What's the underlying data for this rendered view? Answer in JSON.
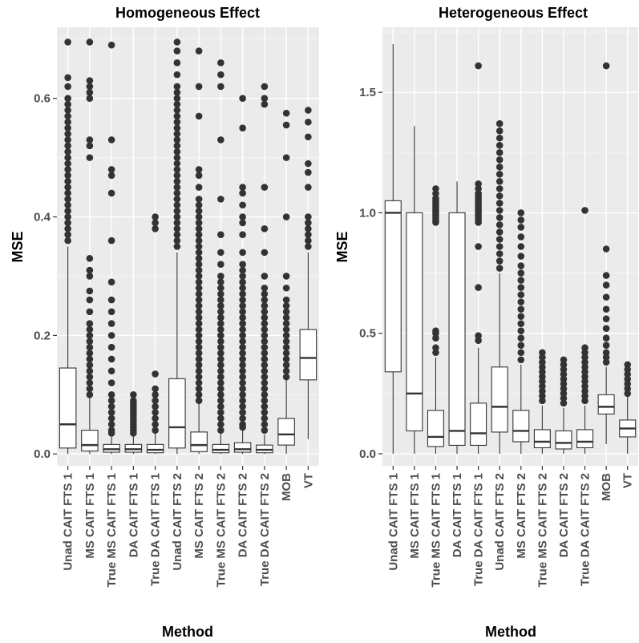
{
  "chart_data": [
    {
      "type": "box",
      "title": "Homogeneous Effect",
      "xlabel": "Method",
      "ylabel": "MSE",
      "ylim": [
        -0.02,
        0.72
      ],
      "yticks": [
        0.0,
        0.2,
        0.4,
        0.6
      ],
      "yticklabels": [
        "0.0",
        "0.2",
        "0.4",
        "0.6"
      ],
      "categories": [
        "Unad CAIT FTS 1",
        "MS CAIT FTS 1",
        "True MS CAIT FTS 1",
        "DA CAIT FTS 1",
        "True DA CAIT FTS 1",
        "Unad CAIT FTS 2",
        "MS CAIT FTS 2",
        "True MS CAIT FTS 2",
        "DA CAIT FTS 2",
        "True DA CAIT FTS 2",
        "MOB",
        "VT"
      ],
      "grid": true,
      "boxes": [
        {
          "min": 0.0,
          "q1": 0.01,
          "median": 0.05,
          "q3": 0.145,
          "max": 0.35,
          "outliers": [
            0.36,
            0.37,
            0.38,
            0.39,
            0.4,
            0.41,
            0.42,
            0.43,
            0.44,
            0.45,
            0.46,
            0.47,
            0.48,
            0.49,
            0.5,
            0.51,
            0.52,
            0.53,
            0.54,
            0.55,
            0.56,
            0.57,
            0.58,
            0.59,
            0.6,
            0.62,
            0.635,
            0.695
          ]
        },
        {
          "min": 0.0,
          "q1": 0.005,
          "median": 0.015,
          "q3": 0.04,
          "max": 0.095,
          "outliers": [
            0.1,
            0.11,
            0.12,
            0.13,
            0.14,
            0.15,
            0.16,
            0.17,
            0.18,
            0.19,
            0.2,
            0.21,
            0.22,
            0.24,
            0.26,
            0.275,
            0.3,
            0.31,
            0.33,
            0.5,
            0.52,
            0.53,
            0.6,
            0.61,
            0.62,
            0.63,
            0.695
          ]
        },
        {
          "min": 0.0,
          "q1": 0.003,
          "median": 0.008,
          "q3": 0.016,
          "max": 0.032,
          "outliers": [
            0.035,
            0.04,
            0.05,
            0.06,
            0.07,
            0.08,
            0.09,
            0.1,
            0.12,
            0.14,
            0.16,
            0.18,
            0.2,
            0.22,
            0.24,
            0.26,
            0.29,
            0.36,
            0.44,
            0.47,
            0.48,
            0.53,
            0.69
          ]
        },
        {
          "min": 0.0,
          "q1": 0.003,
          "median": 0.008,
          "q3": 0.016,
          "max": 0.032,
          "outliers": [
            0.035,
            0.04,
            0.045,
            0.05,
            0.055,
            0.06,
            0.065,
            0.07,
            0.075,
            0.08,
            0.085,
            0.09,
            0.1
          ]
        },
        {
          "min": 0.0,
          "q1": 0.002,
          "median": 0.007,
          "q3": 0.016,
          "max": 0.035,
          "outliers": [
            0.04,
            0.05,
            0.06,
            0.07,
            0.08,
            0.09,
            0.1,
            0.11,
            0.135,
            0.38,
            0.39,
            0.4
          ]
        },
        {
          "min": 0.0,
          "q1": 0.01,
          "median": 0.045,
          "q3": 0.127,
          "max": 0.34,
          "outliers": [
            0.35,
            0.36,
            0.37,
            0.38,
            0.39,
            0.4,
            0.41,
            0.42,
            0.43,
            0.44,
            0.45,
            0.46,
            0.47,
            0.48,
            0.49,
            0.5,
            0.51,
            0.52,
            0.53,
            0.54,
            0.55,
            0.56,
            0.57,
            0.58,
            0.59,
            0.6,
            0.61,
            0.62,
            0.64,
            0.66,
            0.68,
            0.695
          ]
        },
        {
          "min": 0.0,
          "q1": 0.004,
          "median": 0.015,
          "q3": 0.037,
          "max": 0.085,
          "outliers": [
            0.09,
            0.1,
            0.11,
            0.12,
            0.13,
            0.14,
            0.15,
            0.16,
            0.17,
            0.18,
            0.19,
            0.2,
            0.21,
            0.22,
            0.23,
            0.24,
            0.25,
            0.26,
            0.27,
            0.28,
            0.29,
            0.3,
            0.31,
            0.32,
            0.33,
            0.34,
            0.35,
            0.36,
            0.37,
            0.38,
            0.39,
            0.4,
            0.41,
            0.42,
            0.43,
            0.45,
            0.47,
            0.48,
            0.57,
            0.62,
            0.68
          ]
        },
        {
          "min": 0.0,
          "q1": 0.002,
          "median": 0.007,
          "q3": 0.016,
          "max": 0.035,
          "outliers": [
            0.04,
            0.05,
            0.06,
            0.07,
            0.08,
            0.09,
            0.1,
            0.11,
            0.12,
            0.13,
            0.14,
            0.15,
            0.16,
            0.17,
            0.18,
            0.19,
            0.2,
            0.21,
            0.22,
            0.23,
            0.24,
            0.25,
            0.26,
            0.27,
            0.28,
            0.29,
            0.3,
            0.32,
            0.34,
            0.37,
            0.43,
            0.53,
            0.62,
            0.64,
            0.66
          ]
        },
        {
          "min": 0.0,
          "q1": 0.003,
          "median": 0.008,
          "q3": 0.019,
          "max": 0.04,
          "outliers": [
            0.045,
            0.05,
            0.06,
            0.07,
            0.08,
            0.09,
            0.1,
            0.11,
            0.12,
            0.13,
            0.14,
            0.15,
            0.16,
            0.17,
            0.18,
            0.19,
            0.2,
            0.21,
            0.22,
            0.23,
            0.24,
            0.25,
            0.26,
            0.27,
            0.28,
            0.29,
            0.3,
            0.31,
            0.32,
            0.34,
            0.37,
            0.39,
            0.4,
            0.42,
            0.44,
            0.45,
            0.55,
            0.6
          ]
        },
        {
          "min": 0.0,
          "q1": 0.002,
          "median": 0.007,
          "q3": 0.015,
          "max": 0.033,
          "outliers": [
            0.04,
            0.05,
            0.06,
            0.07,
            0.08,
            0.09,
            0.1,
            0.11,
            0.12,
            0.13,
            0.14,
            0.15,
            0.16,
            0.17,
            0.18,
            0.19,
            0.2,
            0.21,
            0.22,
            0.23,
            0.24,
            0.25,
            0.26,
            0.27,
            0.28,
            0.3,
            0.34,
            0.38,
            0.45,
            0.59,
            0.6,
            0.62
          ]
        },
        {
          "min": 0.0,
          "q1": 0.015,
          "median": 0.033,
          "q3": 0.06,
          "max": 0.125,
          "outliers": [
            0.13,
            0.14,
            0.15,
            0.16,
            0.17,
            0.18,
            0.19,
            0.2,
            0.21,
            0.22,
            0.23,
            0.24,
            0.25,
            0.26,
            0.28,
            0.3,
            0.4,
            0.5,
            0.555,
            0.575
          ]
        },
        {
          "min": 0.025,
          "q1": 0.125,
          "median": 0.162,
          "q3": 0.21,
          "max": 0.34,
          "outliers": [
            0.35,
            0.36,
            0.37,
            0.38,
            0.39,
            0.4,
            0.45,
            0.475,
            0.49,
            0.535,
            0.56,
            0.58
          ]
        }
      ]
    },
    {
      "type": "box",
      "title": "Heterogeneous Effect",
      "xlabel": "Method",
      "ylabel": "MSE",
      "ylim": [
        -0.05,
        1.77
      ],
      "yticks": [
        0.0,
        0.5,
        1.0,
        1.5
      ],
      "yticklabels": [
        "0.0",
        "0.5",
        "1.0",
        "1.5"
      ],
      "categories": [
        "Unad CAIT FTS 1",
        "MS CAIT FTS 1",
        "True MS CAIT FTS 1",
        "DA CAIT FTS 1",
        "True DA CAIT FTS 1",
        "Unad CAIT FTS 2",
        "MS CAIT FTS 2",
        "True MS CAIT FTS 2",
        "DA CAIT FTS 2",
        "True DA CAIT FTS 2",
        "MOB",
        "VT"
      ],
      "grid": true,
      "boxes": [
        {
          "min": 0.0,
          "q1": 0.34,
          "median": 1.0,
          "q3": 1.05,
          "max": 1.7,
          "outliers": []
        },
        {
          "min": 0.0,
          "q1": 0.095,
          "median": 0.25,
          "q3": 1.0,
          "max": 1.36,
          "outliers": []
        },
        {
          "min": 0.0,
          "q1": 0.03,
          "median": 0.07,
          "q3": 0.18,
          "max": 0.4,
          "outliers": [
            0.42,
            0.44,
            0.48,
            0.5,
            0.51,
            0.96,
            0.97,
            0.98,
            0.99,
            1.0,
            1.01,
            1.02,
            1.03,
            1.04,
            1.05,
            1.06,
            1.08,
            1.1
          ]
        },
        {
          "min": 0.0,
          "q1": 0.035,
          "median": 0.095,
          "q3": 1.0,
          "max": 1.13,
          "outliers": []
        },
        {
          "min": 0.0,
          "q1": 0.035,
          "median": 0.085,
          "q3": 0.21,
          "max": 0.44,
          "outliers": [
            0.47,
            0.49,
            0.69,
            0.86,
            0.96,
            0.97,
            0.98,
            0.99,
            1.0,
            1.01,
            1.02,
            1.03,
            1.04,
            1.05,
            1.06,
            1.07,
            1.08,
            1.1,
            1.12,
            1.61
          ]
        },
        {
          "min": 0.0,
          "q1": 0.09,
          "median": 0.195,
          "q3": 0.36,
          "max": 0.75,
          "outliers": [
            0.77,
            0.8,
            0.83,
            0.86,
            0.89,
            0.92,
            0.95,
            0.98,
            1.01,
            1.04,
            1.07,
            1.1,
            1.13,
            1.16,
            1.19,
            1.22,
            1.25,
            1.28,
            1.31,
            1.34,
            1.37
          ]
        },
        {
          "min": 0.0,
          "q1": 0.05,
          "median": 0.095,
          "q3": 0.18,
          "max": 0.37,
          "outliers": [
            0.39,
            0.42,
            0.45,
            0.48,
            0.51,
            0.54,
            0.57,
            0.6,
            0.63,
            0.66,
            0.69,
            0.72,
            0.75,
            0.78,
            0.82,
            0.86,
            0.9,
            0.94,
            0.97,
            1.0
          ]
        },
        {
          "min": 0.0,
          "q1": 0.025,
          "median": 0.05,
          "q3": 0.1,
          "max": 0.2,
          "outliers": [
            0.22,
            0.24,
            0.26,
            0.28,
            0.3,
            0.32,
            0.34,
            0.36,
            0.38,
            0.4,
            0.42
          ]
        },
        {
          "min": 0.0,
          "q1": 0.02,
          "median": 0.045,
          "q3": 0.095,
          "max": 0.19,
          "outliers": [
            0.21,
            0.23,
            0.25,
            0.27,
            0.29,
            0.31,
            0.33,
            0.35,
            0.37,
            0.39
          ]
        },
        {
          "min": 0.0,
          "q1": 0.025,
          "median": 0.05,
          "q3": 0.1,
          "max": 0.2,
          "outliers": [
            0.22,
            0.24,
            0.26,
            0.28,
            0.3,
            0.32,
            0.34,
            0.36,
            0.38,
            0.4,
            0.42,
            0.44,
            1.01
          ]
        },
        {
          "min": 0.04,
          "q1": 0.165,
          "median": 0.195,
          "q3": 0.245,
          "max": 0.36,
          "outliers": [
            0.38,
            0.4,
            0.42,
            0.45,
            0.48,
            0.52,
            0.56,
            0.6,
            0.65,
            0.7,
            0.74,
            0.85,
            1.61
          ]
        },
        {
          "min": 0.0,
          "q1": 0.07,
          "median": 0.105,
          "q3": 0.14,
          "max": 0.24,
          "outliers": [
            0.25,
            0.27,
            0.29,
            0.31,
            0.33,
            0.35,
            0.37
          ]
        }
      ]
    }
  ]
}
